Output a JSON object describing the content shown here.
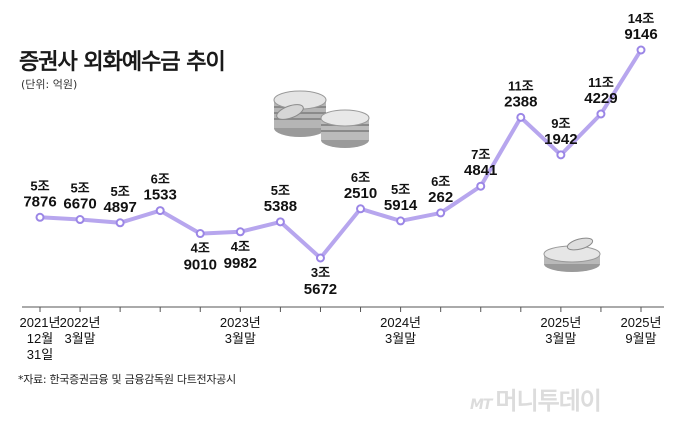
{
  "title": "증권사 외화예수금 추이",
  "unit": "(단위: 억원)",
  "source": "*자료: 한국증권금융 및 금융감독원 다트전자공시",
  "logo": {
    "mt": "MT",
    "text": "머니투데이"
  },
  "colors": {
    "line": "#b7a6ee",
    "point": "#9b86e6",
    "axis": "#555555",
    "text": "#111111"
  },
  "chart_data": {
    "type": "line",
    "title": "증권사 외화예수금 추이",
    "ylabel": "(단위: 억원)",
    "series": [
      {
        "values": [
          57876,
          56670,
          54897,
          61533,
          49010,
          49982,
          55388,
          35672,
          62510,
          55914,
          60262,
          74841,
          112388,
          91942,
          114229,
          149146
        ],
        "labels": [
          [
            "5조",
            "7876"
          ],
          [
            "5조",
            "6670"
          ],
          [
            "5조",
            "4897"
          ],
          [
            "6조",
            "1533"
          ],
          [
            "4조",
            "9010"
          ],
          [
            "4조",
            "9982"
          ],
          [
            "5조",
            "5388"
          ],
          [
            "3조",
            "5672"
          ],
          [
            "6조",
            "2510"
          ],
          [
            "5조",
            "5914"
          ],
          [
            "6조",
            "262"
          ],
          [
            "7조",
            "4841"
          ],
          [
            "11조",
            "2388"
          ],
          [
            "9조",
            "1942"
          ],
          [
            "11조",
            "4229"
          ],
          [
            "14조",
            "9146"
          ]
        ]
      }
    ],
    "x_ticks": [
      {
        "index": 0,
        "lines": [
          "2021년",
          "12월",
          "31일"
        ]
      },
      {
        "index": 1,
        "lines": [
          "2022년",
          "3월말"
        ]
      },
      {
        "index": 5,
        "lines": [
          "2023년",
          "3월말"
        ]
      },
      {
        "index": 9,
        "lines": [
          "2024년",
          "3월말"
        ]
      },
      {
        "index": 13,
        "lines": [
          "2025년",
          "3월말"
        ]
      },
      {
        "index": 15,
        "lines": [
          "2025년",
          "9월말"
        ]
      }
    ],
    "label_side": [
      "above",
      "above",
      "above",
      "above",
      "below",
      "below",
      "above",
      "below",
      "above",
      "above",
      "above",
      "above",
      "above",
      "above",
      "above",
      "above"
    ],
    "grid": false
  }
}
